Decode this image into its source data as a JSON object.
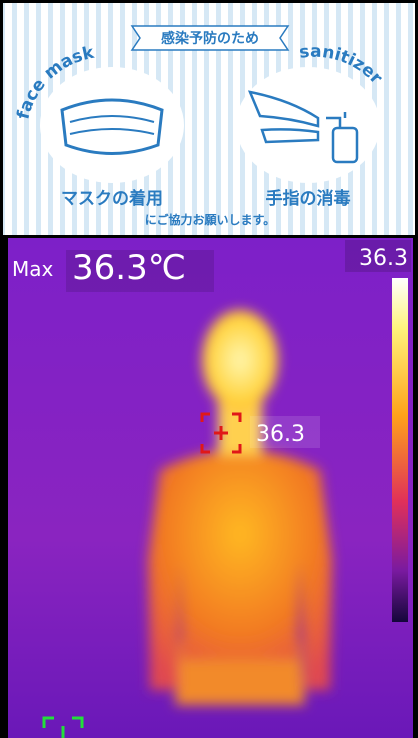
{
  "poster": {
    "ribbon": "感染予防のため",
    "left_label": "face mask",
    "right_label": "sanitizer",
    "left_caption": "マスクの着用",
    "right_caption": "手指の消毒",
    "footer": "にご協力お願いします。"
  },
  "thermal": {
    "max_label": "Max",
    "max_value": "36.3℃",
    "scale_top": "36.3",
    "target_value": "36.3"
  }
}
